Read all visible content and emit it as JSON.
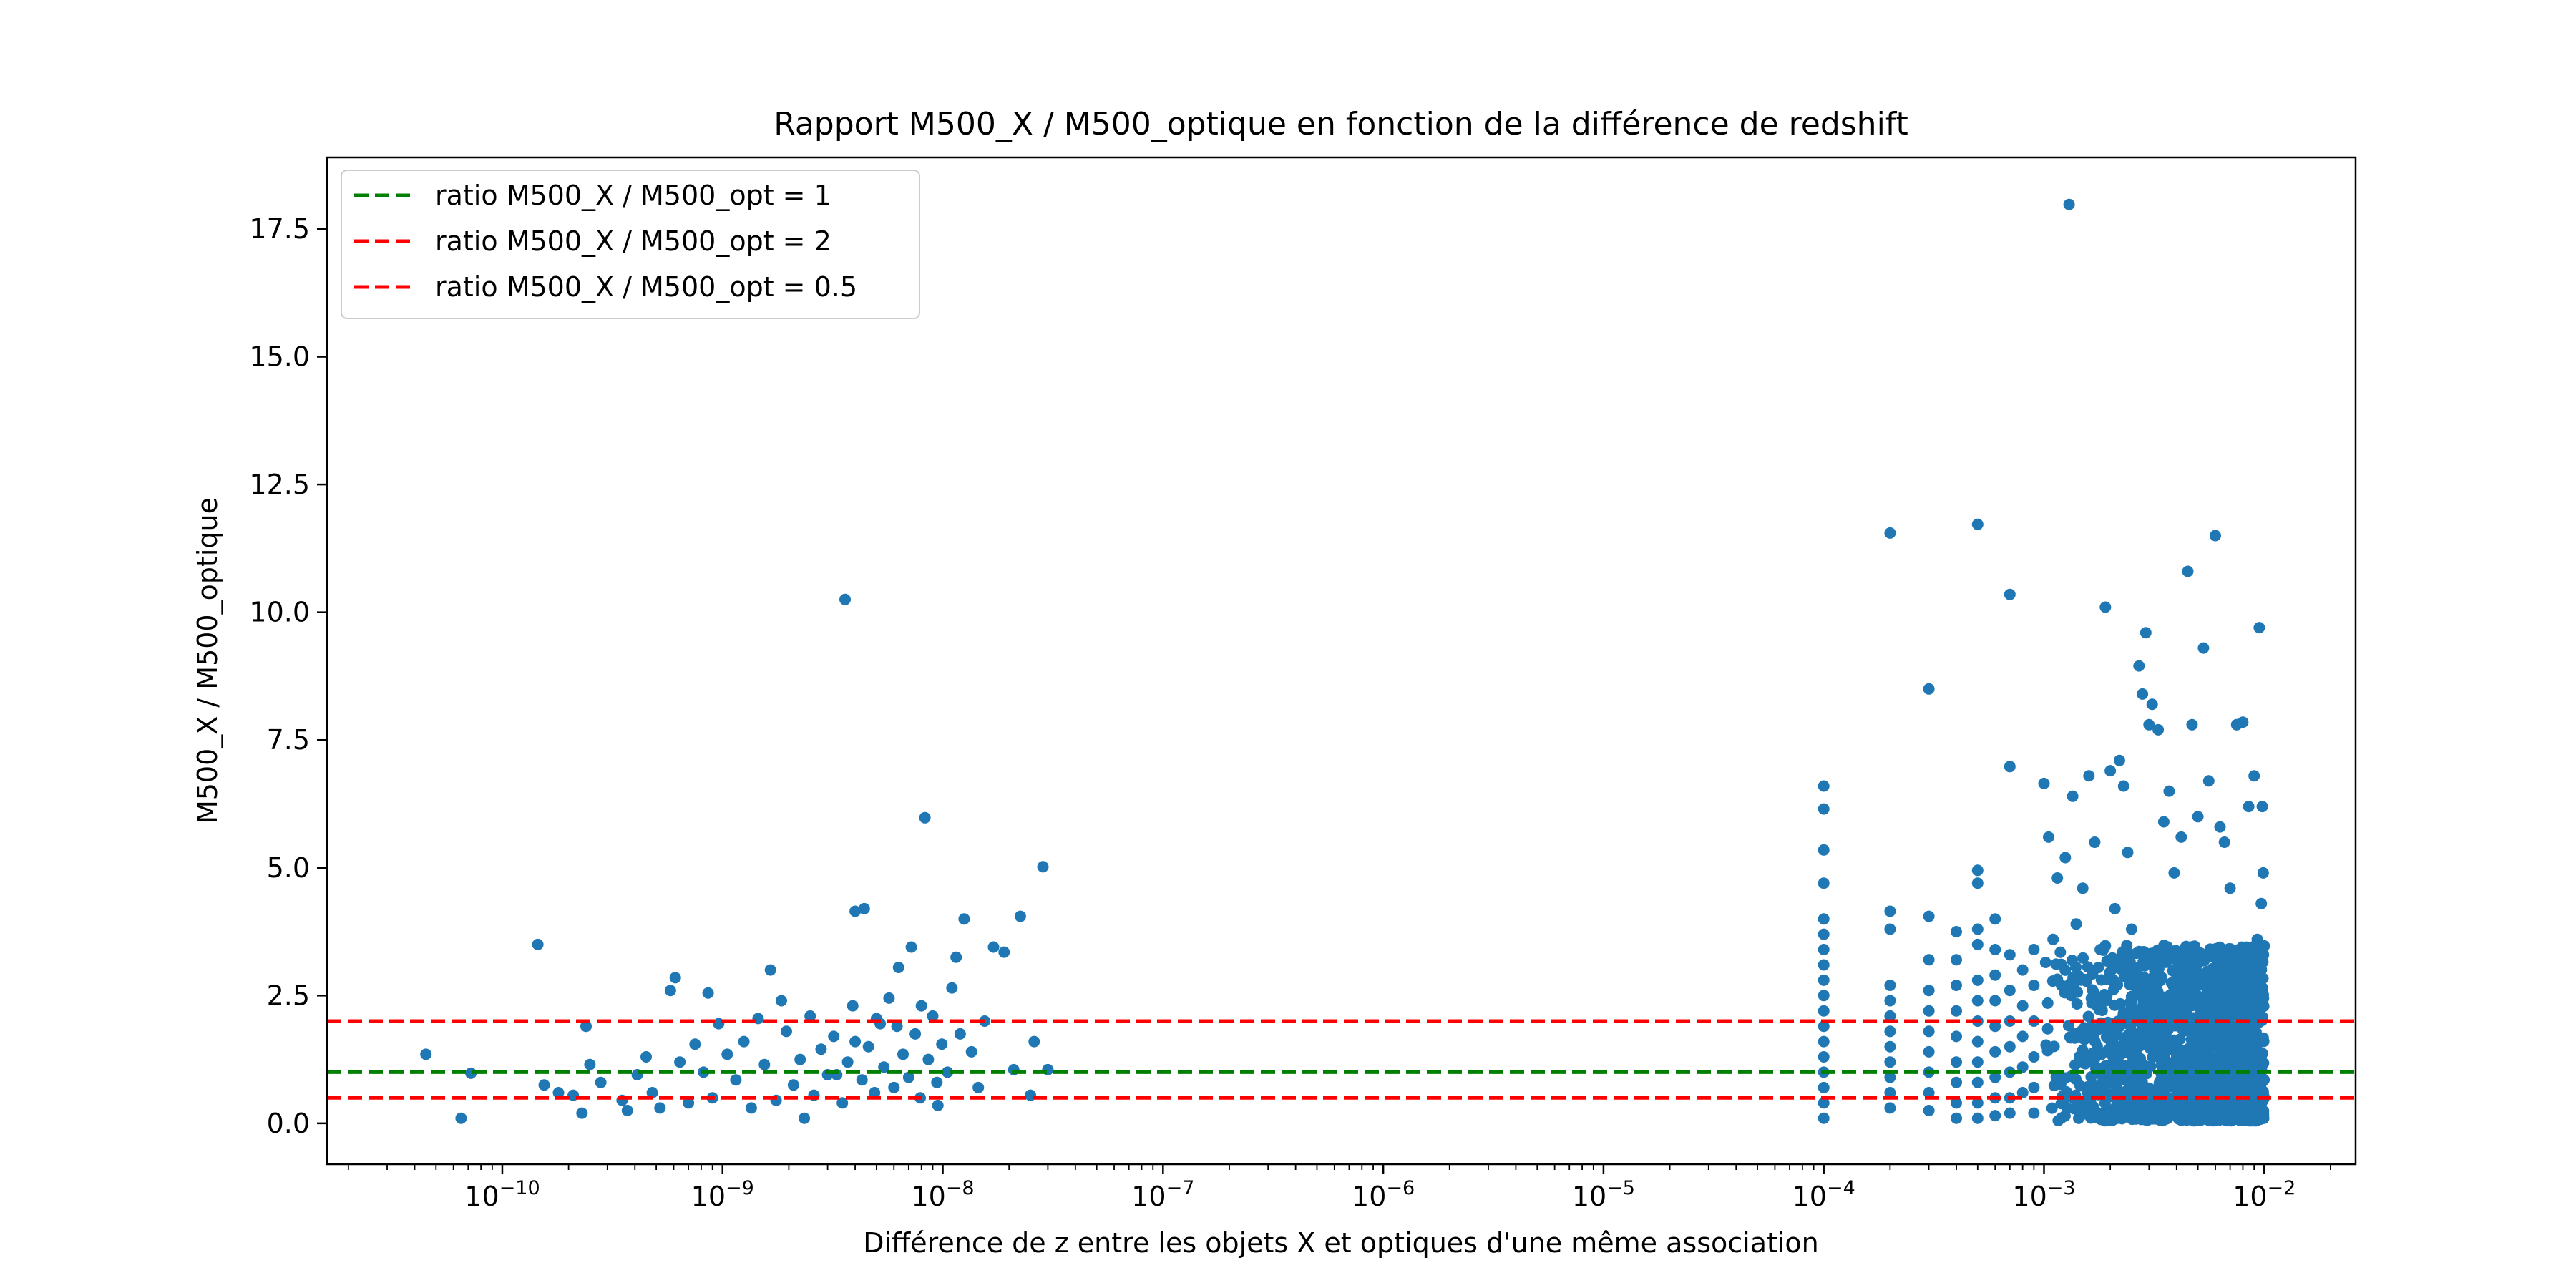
{
  "chart_data": {
    "type": "scatter",
    "title": "Rapport M500_X / M500_optique en fonction de la différence de redshift",
    "xlabel": "Différence de z entre les objets X et optiques d'une même association",
    "ylabel": "M500_X / M500_optique",
    "xscale": "log",
    "xlim": [
      1.6e-11,
      0.026
    ],
    "ylim": [
      -0.8,
      18.9
    ],
    "x_major_ticks": [
      {
        "value": 1e-10,
        "base": "10",
        "exp": "−10"
      },
      {
        "value": 1e-09,
        "base": "10",
        "exp": "−9"
      },
      {
        "value": 1e-08,
        "base": "10",
        "exp": "−8"
      },
      {
        "value": 1e-07,
        "base": "10",
        "exp": "−7"
      },
      {
        "value": 1e-06,
        "base": "10",
        "exp": "−6"
      },
      {
        "value": 1e-05,
        "base": "10",
        "exp": "−5"
      },
      {
        "value": 0.0001,
        "base": "10",
        "exp": "−4"
      },
      {
        "value": 0.001,
        "base": "10",
        "exp": "−3"
      },
      {
        "value": 0.01,
        "base": "10",
        "exp": "−2"
      }
    ],
    "y_ticks": [
      {
        "value": 0,
        "label": "0.0"
      },
      {
        "value": 2.5,
        "label": "2.5"
      },
      {
        "value": 5,
        "label": "5.0"
      },
      {
        "value": 7.5,
        "label": "7.5"
      },
      {
        "value": 10,
        "label": "10.0"
      },
      {
        "value": 12.5,
        "label": "12.5"
      },
      {
        "value": 15,
        "label": "15.0"
      },
      {
        "value": 17.5,
        "label": "17.5"
      }
    ],
    "grid": false,
    "legend_position": "top-left",
    "hlines": [
      {
        "y": 1,
        "color": "#008000",
        "label": "ratio M500_X / M500_opt = 1"
      },
      {
        "y": 2,
        "color": "#ff0000",
        "label": "ratio M500_X / M500_opt = 2"
      },
      {
        "y": 0.5,
        "color": "#ff0000",
        "label": "ratio M500_X / M500_opt = 0.5"
      }
    ],
    "series": [
      {
        "color": "#1f77b4",
        "points": [
          [
            4.5e-11,
            1.35
          ],
          [
            6.5e-11,
            0.1
          ],
          [
            7.2e-11,
            0.98
          ],
          [
            1.45e-10,
            3.5
          ],
          [
            1.55e-10,
            0.75
          ],
          [
            1.8e-10,
            0.6
          ],
          [
            2.1e-10,
            0.55
          ],
          [
            2.3e-10,
            0.2
          ],
          [
            2.4e-10,
            1.9
          ],
          [
            2.5e-10,
            1.15
          ],
          [
            2.8e-10,
            0.8
          ],
          [
            3.5e-10,
            0.45
          ],
          [
            3.7e-10,
            0.25
          ],
          [
            4.1e-10,
            0.95
          ],
          [
            4.5e-10,
            1.3
          ],
          [
            4.8e-10,
            0.6
          ],
          [
            5.2e-10,
            0.3
          ],
          [
            5.8e-10,
            2.6
          ],
          [
            6.1e-10,
            2.85
          ],
          [
            6.4e-10,
            1.2
          ],
          [
            7e-10,
            0.4
          ],
          [
            7.5e-10,
            1.55
          ],
          [
            8.2e-10,
            1.0
          ],
          [
            8.6e-10,
            2.55
          ],
          [
            9e-10,
            0.5
          ],
          [
            9.6e-10,
            1.95
          ],
          [
            1.05e-09,
            1.35
          ],
          [
            1.15e-09,
            0.85
          ],
          [
            1.25e-09,
            1.6
          ],
          [
            1.35e-09,
            0.3
          ],
          [
            1.45e-09,
            2.05
          ],
          [
            1.55e-09,
            1.15
          ],
          [
            1.65e-09,
            3.0
          ],
          [
            1.75e-09,
            0.45
          ],
          [
            1.85e-09,
            2.4
          ],
          [
            1.95e-09,
            1.8
          ],
          [
            2.1e-09,
            0.75
          ],
          [
            2.25e-09,
            1.25
          ],
          [
            2.35e-09,
            0.1
          ],
          [
            2.5e-09,
            2.1
          ],
          [
            2.6e-09,
            0.55
          ],
          [
            2.8e-09,
            1.45
          ],
          [
            3e-09,
            0.95
          ],
          [
            3.2e-09,
            1.7
          ],
          [
            3.5e-09,
            0.4
          ],
          [
            3.6e-09,
            10.25
          ],
          [
            3.7e-09,
            1.2
          ],
          [
            3.9e-09,
            2.3
          ],
          [
            4e-09,
            4.15
          ],
          [
            4.3e-09,
            0.85
          ],
          [
            4.4e-09,
            4.2
          ],
          [
            4.6e-09,
            1.5
          ],
          [
            4.9e-09,
            0.6
          ],
          [
            5.2e-09,
            1.95
          ],
          [
            5.4e-09,
            1.1
          ],
          [
            5.7e-09,
            2.45
          ],
          [
            6e-09,
            0.7
          ],
          [
            6.3e-09,
            3.05
          ],
          [
            6.6e-09,
            1.35
          ],
          [
            7e-09,
            0.9
          ],
          [
            7.2e-09,
            3.45
          ],
          [
            7.5e-09,
            1.75
          ],
          [
            7.9e-09,
            0.5
          ],
          [
            8.3e-09,
            5.98
          ],
          [
            8.6e-09,
            1.25
          ],
          [
            9e-09,
            2.1
          ],
          [
            9.4e-09,
            0.8
          ],
          [
            9.9e-09,
            1.55
          ],
          [
            1.05e-08,
            1.0
          ],
          [
            1.1e-08,
            2.65
          ],
          [
            1.15e-08,
            3.25
          ],
          [
            1.25e-08,
            4.0
          ],
          [
            1.35e-08,
            1.4
          ],
          [
            1.45e-08,
            0.7
          ],
          [
            1.55e-08,
            2.0
          ],
          [
            1.7e-08,
            3.45
          ],
          [
            1.9e-08,
            3.35
          ],
          [
            2.1e-08,
            1.05
          ],
          [
            2.25e-08,
            4.05
          ],
          [
            2.5e-08,
            0.55
          ],
          [
            2.6e-08,
            1.6
          ],
          [
            2.85e-08,
            5.02
          ],
          [
            3e-08,
            1.05
          ],
          [
            4e-09,
            1.6
          ],
          [
            6.2e-09,
            1.9
          ],
          [
            5e-09,
            2.05
          ],
          [
            8e-09,
            2.3
          ],
          [
            1.2e-08,
            1.75
          ],
          [
            9.5e-09,
            0.35
          ],
          [
            3.3e-09,
            0.95
          ],
          [
            0.0001,
            6.6
          ],
          [
            0.0001,
            6.15
          ],
          [
            0.0001,
            5.35
          ],
          [
            0.0001,
            4.7
          ],
          [
            0.0001,
            4.0
          ],
          [
            0.0001,
            3.7
          ],
          [
            0.0001,
            3.4
          ],
          [
            0.0001,
            3.1
          ],
          [
            0.0001,
            2.8
          ],
          [
            0.0001,
            2.5
          ],
          [
            0.0001,
            2.2
          ],
          [
            0.0001,
            1.9
          ],
          [
            0.0001,
            1.6
          ],
          [
            0.0001,
            1.3
          ],
          [
            0.0001,
            1.0
          ],
          [
            0.0001,
            0.7
          ],
          [
            0.0001,
            0.4
          ],
          [
            0.0001,
            0.1
          ],
          [
            0.0002,
            11.55
          ],
          [
            0.0002,
            4.15
          ],
          [
            0.0002,
            3.8
          ],
          [
            0.0002,
            2.7
          ],
          [
            0.0002,
            2.4
          ],
          [
            0.0002,
            2.1
          ],
          [
            0.0002,
            1.8
          ],
          [
            0.0002,
            1.5
          ],
          [
            0.0002,
            1.2
          ],
          [
            0.0002,
            0.9
          ],
          [
            0.0002,
            0.6
          ],
          [
            0.0002,
            0.3
          ],
          [
            0.0003,
            8.5
          ],
          [
            0.0003,
            4.05
          ],
          [
            0.0003,
            3.2
          ],
          [
            0.0003,
            2.6
          ],
          [
            0.0003,
            2.2
          ],
          [
            0.0003,
            1.8
          ],
          [
            0.0003,
            1.4
          ],
          [
            0.0003,
            1.0
          ],
          [
            0.0003,
            0.6
          ],
          [
            0.0003,
            0.25
          ],
          [
            0.0004,
            3.75
          ],
          [
            0.0004,
            3.2
          ],
          [
            0.0004,
            2.7
          ],
          [
            0.0004,
            2.2
          ],
          [
            0.0004,
            1.7
          ],
          [
            0.0004,
            1.2
          ],
          [
            0.0004,
            0.8
          ],
          [
            0.0004,
            0.4
          ],
          [
            0.0004,
            0.1
          ],
          [
            0.0005,
            11.72
          ],
          [
            0.0005,
            4.95
          ],
          [
            0.0005,
            4.7
          ],
          [
            0.0005,
            3.8
          ],
          [
            0.0005,
            3.5
          ],
          [
            0.0005,
            2.8
          ],
          [
            0.0005,
            2.4
          ],
          [
            0.0005,
            2.0
          ],
          [
            0.0005,
            1.6
          ],
          [
            0.0005,
            1.2
          ],
          [
            0.0005,
            0.8
          ],
          [
            0.0005,
            0.4
          ],
          [
            0.0005,
            0.1
          ],
          [
            0.0006,
            4.0
          ],
          [
            0.0006,
            3.4
          ],
          [
            0.0006,
            2.9
          ],
          [
            0.0006,
            2.4
          ],
          [
            0.0006,
            1.9
          ],
          [
            0.0006,
            1.4
          ],
          [
            0.0006,
            0.9
          ],
          [
            0.0006,
            0.5
          ],
          [
            0.0006,
            0.15
          ],
          [
            0.0007,
            10.35
          ],
          [
            0.0007,
            6.98
          ],
          [
            0.0007,
            3.3
          ],
          [
            0.0007,
            2.6
          ],
          [
            0.0007,
            2.0
          ],
          [
            0.0007,
            1.5
          ],
          [
            0.0007,
            1.0
          ],
          [
            0.0007,
            0.5
          ],
          [
            0.0007,
            0.2
          ],
          [
            0.0008,
            3.0
          ],
          [
            0.0008,
            2.3
          ],
          [
            0.0008,
            1.7
          ],
          [
            0.0008,
            1.1
          ],
          [
            0.0008,
            0.6
          ],
          [
            0.0009,
            3.4
          ],
          [
            0.0009,
            2.7
          ],
          [
            0.0009,
            2.0
          ],
          [
            0.0009,
            1.3
          ],
          [
            0.0009,
            0.7
          ],
          [
            0.0009,
            0.2
          ],
          [
            0.001,
            6.65
          ],
          [
            0.00105,
            5.6
          ],
          [
            0.0011,
            3.6
          ],
          [
            0.00115,
            4.8
          ],
          [
            0.0012,
            2.7
          ],
          [
            0.00125,
            5.2
          ],
          [
            0.0013,
            17.98
          ],
          [
            0.00135,
            6.4
          ],
          [
            0.0014,
            3.9
          ],
          [
            0.0015,
            4.6
          ],
          [
            0.0016,
            6.8
          ],
          [
            0.0017,
            5.5
          ],
          [
            0.0018,
            3.4
          ],
          [
            0.0019,
            10.1
          ],
          [
            0.002,
            6.9
          ],
          [
            0.0021,
            4.2
          ],
          [
            0.0022,
            7.1
          ],
          [
            0.0023,
            6.6
          ],
          [
            0.0024,
            5.3
          ],
          [
            0.0025,
            3.8
          ],
          [
            0.0027,
            8.95
          ],
          [
            0.0028,
            8.4
          ],
          [
            0.0029,
            9.6
          ],
          [
            0.003,
            7.8
          ],
          [
            0.0031,
            8.2
          ],
          [
            0.0033,
            7.7
          ],
          [
            0.0035,
            5.9
          ],
          [
            0.0037,
            6.5
          ],
          [
            0.0039,
            4.9
          ],
          [
            0.0042,
            5.6
          ],
          [
            0.0045,
            10.8
          ],
          [
            0.0047,
            7.8
          ],
          [
            0.005,
            6.0
          ],
          [
            0.0053,
            9.3
          ],
          [
            0.0056,
            6.7
          ],
          [
            0.006,
            11.5
          ],
          [
            0.0063,
            5.8
          ],
          [
            0.0066,
            5.5
          ],
          [
            0.007,
            4.6
          ],
          [
            0.0075,
            7.8
          ],
          [
            0.008,
            7.85
          ],
          [
            0.0085,
            6.2
          ],
          [
            0.009,
            6.8
          ],
          [
            0.0095,
            9.7
          ],
          [
            0.0098,
            6.2
          ],
          [
            0.0099,
            4.9
          ],
          [
            0.0097,
            4.3
          ],
          [
            0.0093,
            3.6
          ]
        ],
        "dense_region": {
          "x_range": [
            0.001,
            0.01
          ],
          "y_range": [
            0.05,
            3.5
          ]
        }
      }
    ]
  }
}
